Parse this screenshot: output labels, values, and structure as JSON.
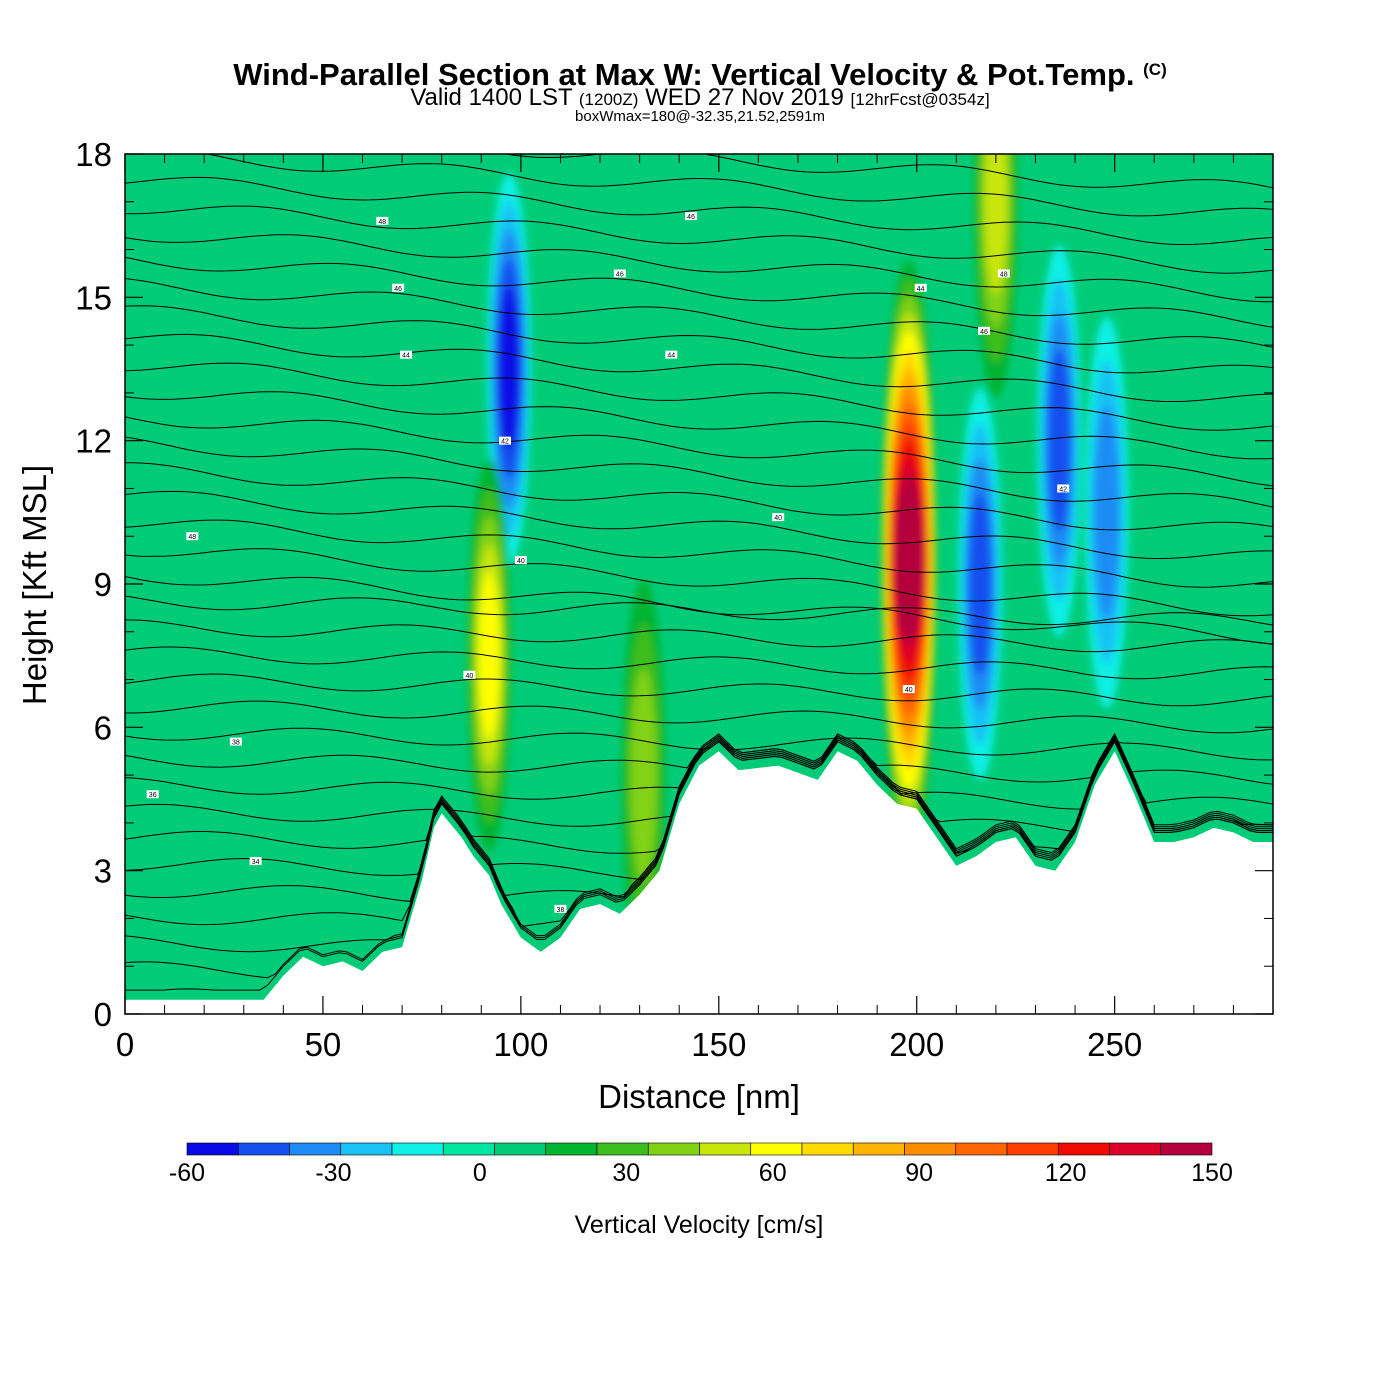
{
  "header": {
    "title": "Wind-Parallel Section at Max W: Vertical Velocity & Pot.Temp.",
    "copyright": "(C)",
    "valid_prefix": "Valid 1400 LST",
    "valid_utc": "(1200Z)",
    "valid_date": "WED 27 Nov 2019",
    "forecast": "[12hrFcst@0354z]",
    "box_info": "boxWmax=180@-32.35,21.52,2591m"
  },
  "chart_data": {
    "type": "heatmap",
    "xlabel": "Distance [nm]",
    "ylabel": "Height [Kft MSL]",
    "xlim": [
      0,
      290
    ],
    "ylim": [
      0,
      18
    ],
    "xticks": [
      0,
      50,
      100,
      150,
      200,
      250
    ],
    "yticks": [
      0,
      3,
      6,
      9,
      12,
      15,
      18
    ],
    "colorbar": {
      "label": "Vertical Velocity [cm/s]",
      "ticks": [
        -60,
        -30,
        0,
        30,
        60,
        90,
        120,
        150
      ],
      "levels": [
        -60,
        -50,
        -40,
        -30,
        -20,
        -10,
        0,
        10,
        20,
        30,
        40,
        50,
        60,
        70,
        80,
        90,
        100,
        110,
        120,
        130,
        140,
        150
      ],
      "colors": [
        "#0a0ae6",
        "#1450f0",
        "#1e8cf5",
        "#19c3f5",
        "#0ff0e6",
        "#00e6a0",
        "#00cc78",
        "#00b432",
        "#3cbe1e",
        "#82d214",
        "#c8e60a",
        "#ffff00",
        "#ffdc00",
        "#ffb400",
        "#ff8c00",
        "#ff6400",
        "#ff3c00",
        "#f00a00",
        "#dc0028",
        "#b4003c",
        "#b4003c"
      ]
    },
    "velocity_features": [
      {
        "x": 97,
        "y": 13.5,
        "w": -55
      },
      {
        "x": 92,
        "y": 7.5,
        "w": 55
      },
      {
        "x": 198,
        "y": 9.5,
        "w": 145
      },
      {
        "x": 216,
        "y": 9,
        "w": -45
      },
      {
        "x": 236,
        "y": 12,
        "w": -45
      },
      {
        "x": 248,
        "y": 10.5,
        "w": -35
      },
      {
        "x": 220,
        "y": 17,
        "w": 45
      },
      {
        "x": 131,
        "y": 5,
        "w": 30
      }
    ],
    "terrain": {
      "x": [
        0,
        35,
        40,
        45,
        50,
        55,
        60,
        65,
        70,
        75,
        78,
        80,
        85,
        88,
        92,
        95,
        100,
        105,
        110,
        115,
        120,
        125,
        130,
        135,
        140,
        145,
        150,
        155,
        165,
        175,
        180,
        185,
        190,
        195,
        200,
        205,
        210,
        215,
        220,
        225,
        230,
        235,
        240,
        245,
        250,
        255,
        260,
        265,
        270,
        275,
        280,
        285,
        290
      ],
      "h": [
        0.3,
        0.3,
        0.8,
        1.2,
        1.0,
        1.1,
        0.9,
        1.3,
        1.4,
        2.8,
        3.9,
        4.2,
        3.7,
        3.3,
        2.9,
        2.3,
        1.6,
        1.3,
        1.6,
        2.2,
        2.3,
        2.1,
        2.5,
        3.0,
        4.4,
        5.2,
        5.5,
        5.1,
        5.2,
        4.9,
        5.5,
        5.3,
        4.8,
        4.4,
        4.3,
        3.7,
        3.1,
        3.3,
        3.6,
        3.7,
        3.1,
        3.0,
        3.6,
        4.8,
        5.5,
        4.6,
        3.6,
        3.6,
        3.7,
        3.9,
        3.8,
        3.6,
        3.6
      ]
    },
    "contour_labels": [
      {
        "x": 65,
        "y": 16.6,
        "text": "48"
      },
      {
        "x": 69,
        "y": 15.2,
        "text": "46"
      },
      {
        "x": 71,
        "y": 13.8,
        "text": "44"
      },
      {
        "x": 17,
        "y": 10.0,
        "text": "48"
      },
      {
        "x": 28,
        "y": 5.7,
        "text": "38"
      },
      {
        "x": 7,
        "y": 4.6,
        "text": "36"
      },
      {
        "x": 33,
        "y": 3.2,
        "text": "34"
      },
      {
        "x": 87,
        "y": 7.1,
        "text": "40"
      },
      {
        "x": 96,
        "y": 12.0,
        "text": "42"
      },
      {
        "x": 100,
        "y": 9.5,
        "text": "40"
      },
      {
        "x": 110,
        "y": 2.2,
        "text": "38"
      },
      {
        "x": 125,
        "y": 15.5,
        "text": "46"
      },
      {
        "x": 138,
        "y": 13.8,
        "text": "44"
      },
      {
        "x": 143,
        "y": 16.7,
        "text": "46"
      },
      {
        "x": 165,
        "y": 10.4,
        "text": "40"
      },
      {
        "x": 201,
        "y": 15.2,
        "text": "44"
      },
      {
        "x": 198,
        "y": 6.8,
        "text": "40"
      },
      {
        "x": 222,
        "y": 15.5,
        "text": "48"
      },
      {
        "x": 217,
        "y": 14.3,
        "text": "46"
      },
      {
        "x": 237,
        "y": 11.0,
        "text": "42"
      }
    ]
  }
}
